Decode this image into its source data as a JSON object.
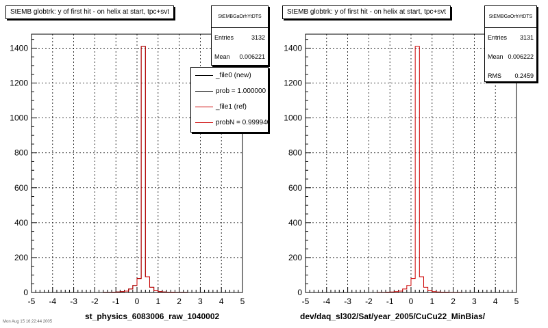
{
  "footer": "Mon Aug 15 16:22:44 2005",
  "chart_data": [
    {
      "type": "bar",
      "title": "StEMB globtrk: y of first hit - on helix at start, tpc+svt",
      "xlabel": "st_physics_6083006_raw_1040002",
      "ylabel": "",
      "xlim": [
        -5,
        5
      ],
      "ylim": [
        0,
        1480
      ],
      "xticks": [
        "-5",
        "-4",
        "-3",
        "-2",
        "-1",
        "0",
        "1",
        "2",
        "3",
        "4",
        "5"
      ],
      "yticks": [
        "0",
        "200",
        "400",
        "600",
        "800",
        "1000",
        "1200",
        "1400"
      ],
      "grid": true,
      "bin_edges_start": -5,
      "bin_width": 0.2,
      "series": [
        {
          "name": "_file0 (new)",
          "color": "#000000",
          "values": [
            0,
            0,
            0,
            0,
            0,
            0,
            0,
            0,
            0,
            0,
            0,
            0,
            0,
            0,
            0,
            0,
            0,
            1,
            1,
            2,
            3,
            5,
            8,
            20,
            40,
            80,
            1410,
            90,
            30,
            10,
            5,
            3,
            2,
            2,
            1,
            1,
            1,
            0,
            0,
            0,
            0,
            0,
            0,
            0,
            0,
            0,
            0,
            0,
            0,
            0
          ]
        },
        {
          "name": "_file1 (ref)",
          "color": "#cc0000",
          "values": [
            0,
            0,
            0,
            0,
            0,
            0,
            0,
            0,
            0,
            0,
            0,
            0,
            0,
            0,
            0,
            0,
            0,
            1,
            1,
            2,
            3,
            5,
            8,
            20,
            40,
            80,
            1410,
            90,
            30,
            10,
            5,
            3,
            2,
            2,
            1,
            1,
            1,
            0,
            0,
            0,
            0,
            0,
            0,
            0,
            0,
            0,
            0,
            0,
            0,
            0
          ]
        }
      ],
      "stats": {
        "name": "StEMBGaOrhYtDTS",
        "entries_label": "Entries",
        "entries": "3132",
        "mean_label": "Mean",
        "mean": "0.006221"
      },
      "legend": {
        "placement": "top-right",
        "items": [
          {
            "label": "_file0 (new)",
            "color": "#000000"
          },
          {
            "label": "prob = 1.000000",
            "color": "#000000"
          },
          {
            "label": "_file1 (ref)",
            "color": "#cc0000"
          },
          {
            "label": "probN = 0.999940",
            "color": "#cc0000"
          }
        ]
      }
    },
    {
      "type": "bar",
      "title": "StEMB globtrk: y of first hit - on helix at start, tpc+svt",
      "xlabel": "dev/daq_sl302/Sat/year_2005/CuCu22_MinBias/",
      "ylabel": "",
      "xlim": [
        -5,
        5
      ],
      "ylim": [
        0,
        1480
      ],
      "xticks": [
        "-5",
        "-4",
        "-3",
        "-2",
        "-1",
        "0",
        "1",
        "2",
        "3",
        "4",
        "5"
      ],
      "yticks": [
        "0",
        "200",
        "400",
        "600",
        "800",
        "1000",
        "1200",
        "1400"
      ],
      "grid": true,
      "bin_edges_start": -5,
      "bin_width": 0.2,
      "series": [
        {
          "name": "",
          "color": "#cc0000",
          "values": [
            0,
            0,
            0,
            0,
            0,
            0,
            0,
            0,
            0,
            0,
            0,
            0,
            0,
            0,
            0,
            0,
            0,
            1,
            1,
            2,
            3,
            5,
            8,
            20,
            40,
            80,
            1410,
            90,
            30,
            10,
            5,
            3,
            2,
            2,
            1,
            1,
            1,
            0,
            0,
            0,
            0,
            0,
            0,
            0,
            0,
            0,
            0,
            0,
            0,
            0
          ]
        }
      ],
      "stats": {
        "name": "StEMBGaOrhYtDTS",
        "entries_label": "Entries",
        "entries": "3131",
        "mean_label": "Mean",
        "mean": "0.006222",
        "rms_label": "RMS",
        "rms": "0.2459"
      }
    }
  ]
}
